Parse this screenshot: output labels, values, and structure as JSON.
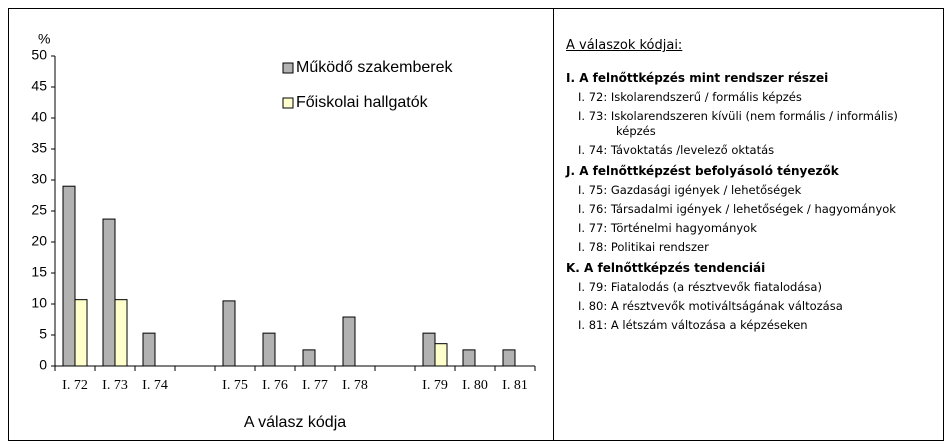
{
  "chart_data": {
    "type": "bar",
    "y_unit": "%",
    "x_label": "A válasz kódja",
    "categories": [
      "I. 72",
      "I. 73",
      "I. 74",
      null,
      "I. 75",
      "I. 76",
      "I. 77",
      "I. 78",
      null,
      "I. 79",
      "I. 80",
      "I. 81"
    ],
    "series": [
      {
        "name": "Működő szakemberek",
        "color": "#b2b2b2",
        "values": [
          29,
          23.7,
          5.3,
          null,
          10.5,
          5.3,
          2.6,
          7.9,
          null,
          5.3,
          2.6,
          2.6
        ]
      },
      {
        "name": "Főiskolai hallgatók",
        "color": "#ffffcc",
        "values": [
          10.7,
          10.7,
          0,
          null,
          0,
          0,
          0,
          0,
          null,
          3.6,
          0,
          0
        ]
      }
    ],
    "ylim": [
      0,
      50
    ],
    "yticks": [
      0,
      5,
      10,
      15,
      20,
      25,
      30,
      35,
      40,
      45,
      50
    ],
    "grid": false
  },
  "legend_panel": {
    "title": "A válaszok kódjai:",
    "groups": [
      {
        "heading": "I. A felnőttképzés mint rendszer részei",
        "items": [
          "I. 72: Iskolarendszerű / formális képzés",
          "I. 73: Iskolarendszeren kívüli (nem formális / informális) képzés",
          "I. 74: Távoktatás /levelező oktatás"
        ]
      },
      {
        "heading": "J. A felnőttképzést befolyásoló tényezők",
        "items": [
          "I. 75: Gazdasági igények / lehetőségek",
          "I. 76: Társadalmi igények / lehetőségek / hagyományok",
          "I. 77: Történelmi hagyományok",
          "I. 78: Politikai rendszer"
        ]
      },
      {
        "heading": "K. A felnőttképzés tendenciái",
        "items": [
          "I. 79: Fiatalodás (a résztvevők fiatalodása)",
          "I. 80: A résztvevők motiváltságának változása",
          "I. 81: A létszám változása a képzéseken"
        ]
      }
    ]
  }
}
